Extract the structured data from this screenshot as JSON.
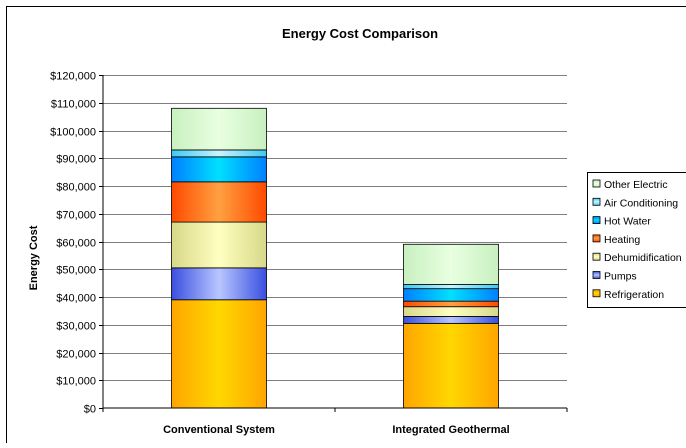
{
  "chart_data": {
    "type": "bar",
    "stacked": true,
    "title": "Energy Cost Comparison",
    "xlabel": "",
    "ylabel": "Energy Cost",
    "ylim": [
      0,
      120000
    ],
    "y_ticks": [
      0,
      10000,
      20000,
      30000,
      40000,
      50000,
      60000,
      70000,
      80000,
      90000,
      100000,
      110000,
      120000
    ],
    "y_tick_labels": [
      "$0",
      "$10,000",
      "$20,000",
      "$30,000",
      "$40,000",
      "$50,000",
      "$60,000",
      "$70,000",
      "$80,000",
      "$90,000",
      "$100,000",
      "$110,000",
      "$120,000"
    ],
    "grid": true,
    "legend_position": "right",
    "categories": [
      "Conventional System",
      "Integrated Geothermal"
    ],
    "series": [
      {
        "name": "Refrigeration",
        "values": [
          39000,
          30500
        ],
        "color": "#FFA500",
        "highlight": "#FFD700"
      },
      {
        "name": "Pumps",
        "values": [
          11500,
          2500
        ],
        "color": "#3A4FE0",
        "highlight": "#B8C6FF"
      },
      {
        "name": "Dehumidification",
        "values": [
          16500,
          3500
        ],
        "color": "#D8D88A",
        "highlight": "#FFFFC0"
      },
      {
        "name": "Heating",
        "values": [
          14500,
          2000
        ],
        "color": "#FF4A00",
        "highlight": "#FFA040"
      },
      {
        "name": "Hot Water",
        "values": [
          9000,
          4500
        ],
        "color": "#0080FF",
        "highlight": "#00E0FF"
      },
      {
        "name": "Air Conditioning",
        "values": [
          2500,
          1500
        ],
        "color": "#40C8F0",
        "highlight": "#C8F4FF"
      },
      {
        "name": "Other Electric",
        "values": [
          15000,
          14500
        ],
        "color": "#C8F0C0",
        "highlight": "#E8FFE0"
      }
    ]
  }
}
